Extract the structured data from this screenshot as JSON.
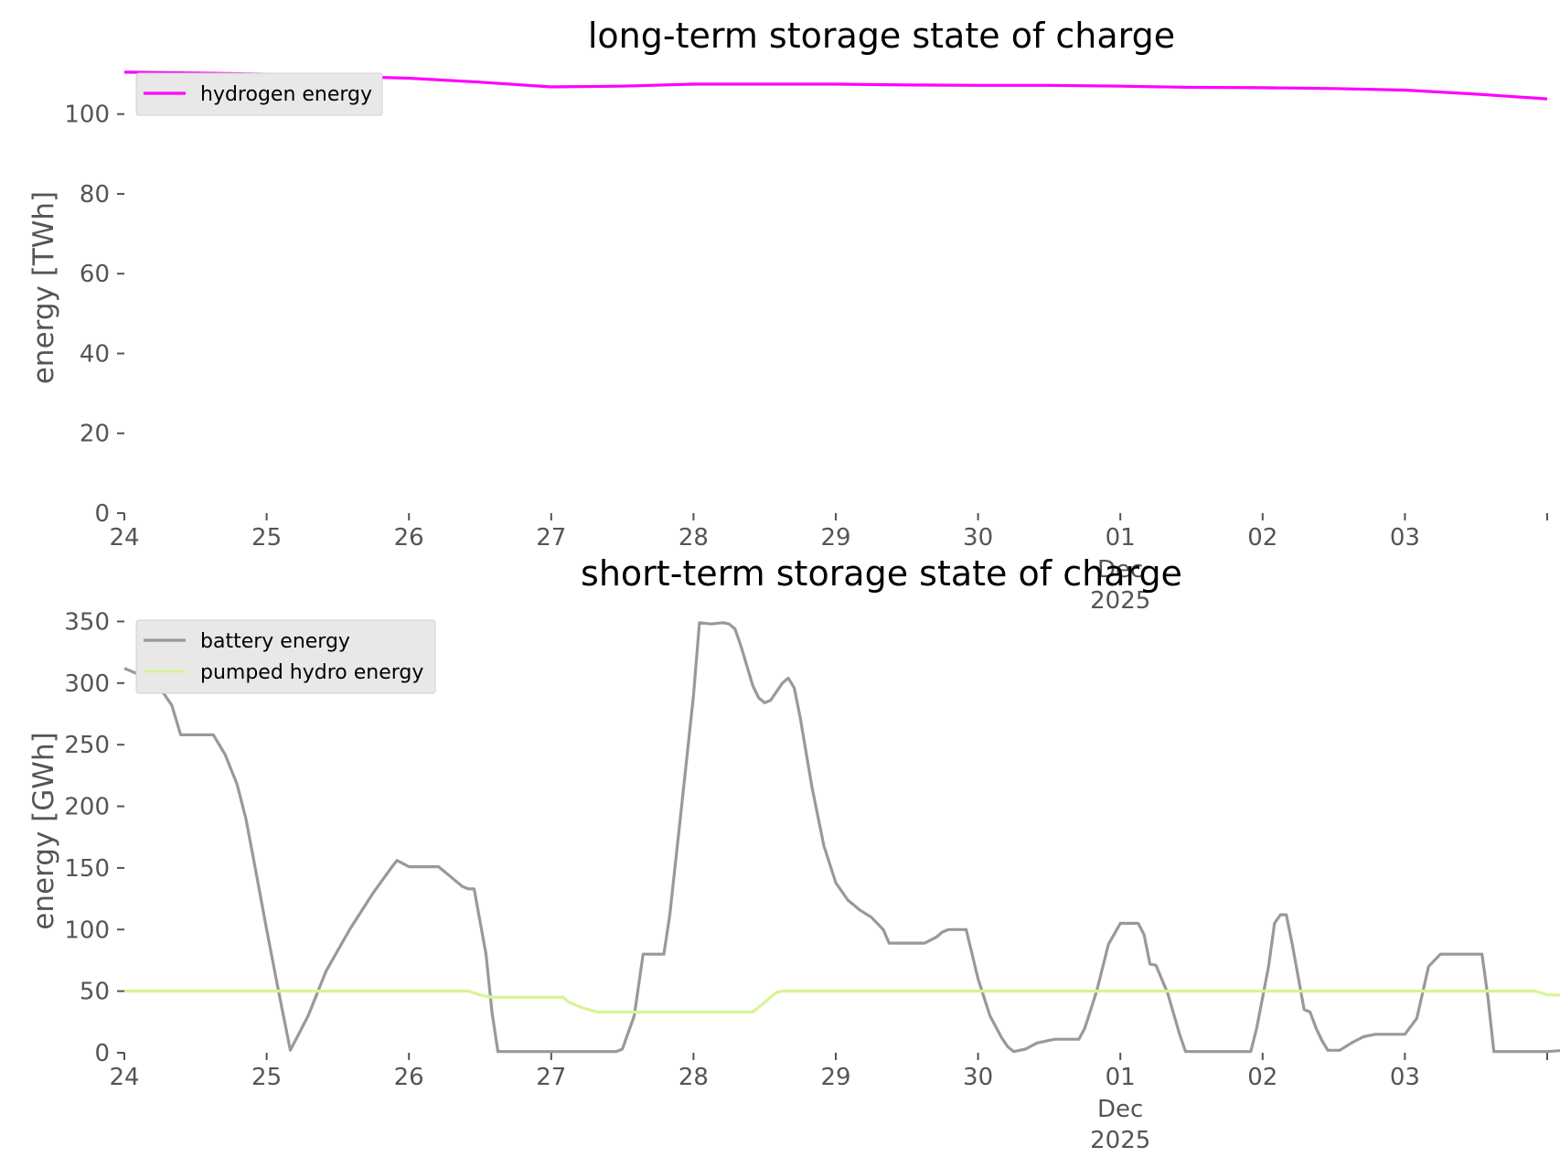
{
  "chart_data": [
    {
      "type": "line",
      "title": "long-term storage state of charge",
      "xlabel": "",
      "ylabel": "energy [TWh]",
      "xlim": [
        "2025-11-24T00:00",
        "2025-12-04T00:00"
      ],
      "ylim": [
        0,
        113
      ],
      "yticks": [
        0,
        20,
        40,
        60,
        80,
        100
      ],
      "xtick_labels": [
        {
          "date": "2025-11-24",
          "label": "24"
        },
        {
          "date": "2025-11-25",
          "label": "25"
        },
        {
          "date": "2025-11-26",
          "label": "26"
        },
        {
          "date": "2025-11-27",
          "label": "27"
        },
        {
          "date": "2025-11-28",
          "label": "28"
        },
        {
          "date": "2025-11-29",
          "label": "29"
        },
        {
          "date": "2025-11-30",
          "label": "30"
        },
        {
          "date": "2025-12-01",
          "label": "01",
          "sub": "Dec",
          "sub2": "2025"
        },
        {
          "date": "2025-12-02",
          "label": "02"
        },
        {
          "date": "2025-12-03",
          "label": "03"
        },
        {
          "date": "2025-12-04",
          "label": ""
        }
      ],
      "grid": false,
      "legend_position": "upper-left",
      "series": [
        {
          "name": "hydrogen energy",
          "color": "#ff00ff",
          "points": [
            [
              "2025-11-24T00:00",
              110.5
            ],
            [
              "2025-11-24T12:00",
              110.3
            ],
            [
              "2025-11-25T00:00",
              110.0
            ],
            [
              "2025-11-25T12:00",
              109.5
            ],
            [
              "2025-11-26T00:00",
              109.0
            ],
            [
              "2025-11-26T12:00",
              108.0
            ],
            [
              "2025-11-27T00:00",
              106.8
            ],
            [
              "2025-11-27T12:00",
              107.0
            ],
            [
              "2025-11-28T00:00",
              107.5
            ],
            [
              "2025-11-28T12:00",
              107.5
            ],
            [
              "2025-11-29T00:00",
              107.5
            ],
            [
              "2025-11-29T12:00",
              107.3
            ],
            [
              "2025-11-30T00:00",
              107.2
            ],
            [
              "2025-11-30T12:00",
              107.2
            ],
            [
              "2025-12-01T00:00",
              107.0
            ],
            [
              "2025-12-01T12:00",
              106.7
            ],
            [
              "2025-12-02T00:00",
              106.6
            ],
            [
              "2025-12-02T12:00",
              106.4
            ],
            [
              "2025-12-03T00:00",
              106.0
            ],
            [
              "2025-12-03T12:00",
              105.0
            ],
            [
              "2025-12-04T00:00",
              103.8
            ]
          ]
        }
      ]
    },
    {
      "type": "line",
      "title": "short-term storage state of charge",
      "xlabel": "",
      "ylabel": "energy [GWh]",
      "xlim": [
        "2025-11-24T00:00",
        "2025-12-04T00:00"
      ],
      "ylim": [
        0,
        360
      ],
      "yticks": [
        0,
        50,
        100,
        150,
        200,
        250,
        300,
        350
      ],
      "xtick_labels": [
        {
          "date": "2025-11-24",
          "label": "24"
        },
        {
          "date": "2025-11-25",
          "label": "25"
        },
        {
          "date": "2025-11-26",
          "label": "26"
        },
        {
          "date": "2025-11-27",
          "label": "27"
        },
        {
          "date": "2025-11-28",
          "label": "28"
        },
        {
          "date": "2025-11-29",
          "label": "29"
        },
        {
          "date": "2025-11-30",
          "label": "30"
        },
        {
          "date": "2025-12-01",
          "label": "01",
          "sub": "Dec",
          "sub2": "2025"
        },
        {
          "date": "2025-12-02",
          "label": "02"
        },
        {
          "date": "2025-12-03",
          "label": "03"
        },
        {
          "date": "2025-12-04",
          "label": ""
        }
      ],
      "grid": false,
      "legend_position": "upper-left",
      "series": [
        {
          "name": "battery energy",
          "color": "#999999",
          "points": [
            [
              "2025-11-24T00:00",
              312
            ],
            [
              "2025-11-24T03:00",
              305
            ],
            [
              "2025-11-24T05:00",
              296
            ],
            [
              "2025-11-24T07:00",
              283
            ],
            [
              "2025-11-24T09:00",
              258
            ],
            [
              "2025-11-24T15:00",
              258
            ],
            [
              "2025-11-24T17:00",
              242
            ],
            [
              "2025-11-24T20:00",
              190
            ],
            [
              "2025-11-24T22:00",
              150
            ],
            [
              "2025-11-25T01:00",
              80
            ],
            [
              "2025-11-25T03:00",
              30
            ],
            [
              "2025-11-25T04:00",
              2
            ],
            [
              "2025-11-25T06:00",
              18
            ],
            [
              "2025-11-25T11:00",
              70
            ],
            [
              "2025-11-25T16:00",
              105
            ],
            [
              "2025-11-25T21:00",
              135
            ],
            [
              "2025-11-25T01:00",
              80
            ]
          ]
        },
        {
          "name": "pumped hydro energy",
          "color": "#d7f497",
          "points": []
        }
      ]
    }
  ]
}
